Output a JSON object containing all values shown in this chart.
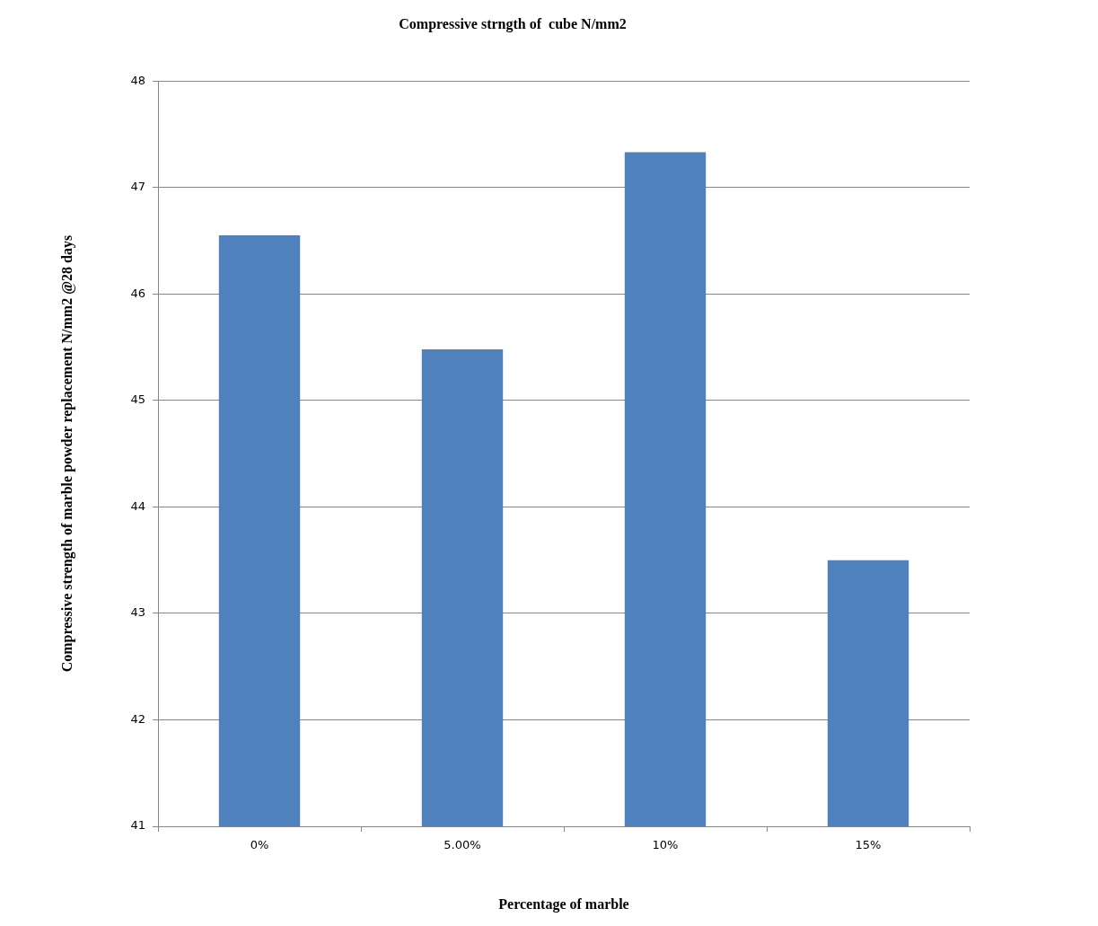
{
  "chart_data": {
    "type": "bar",
    "title": "Compressive strngth of  cube N/mm2",
    "xlabel": "Percentage of marble",
    "ylabel": "Compressive strength of marble powder replacement N/mm2 @28 days",
    "categories": [
      "0%",
      "5.00%",
      "10%",
      "15%"
    ],
    "values": [
      46.55,
      45.48,
      47.33,
      43.5
    ],
    "color": "#4f81bd",
    "ylim": [
      41,
      48
    ],
    "yticks": [
      41,
      42,
      43,
      44,
      45,
      46,
      47,
      48
    ],
    "grid": "y",
    "legend": false
  }
}
